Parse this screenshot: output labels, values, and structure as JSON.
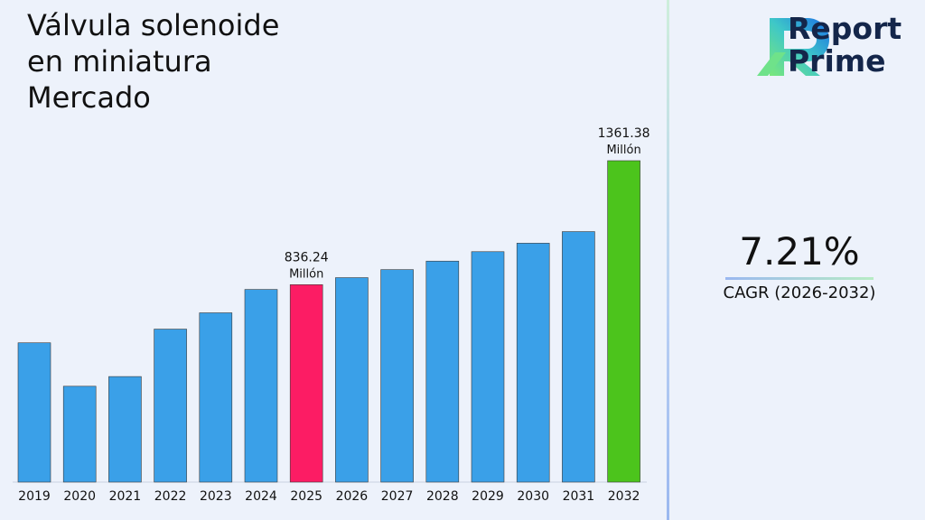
{
  "title_lines": [
    "Válvula solenoide",
    "en miniatura",
    "Mercado"
  ],
  "brand": {
    "line1": "Report",
    "line2": "Prime",
    "logo_icon": "report-prime-r-logo"
  },
  "cagr": {
    "value": "7.21%",
    "label": "CAGR (2026-2032)"
  },
  "colors": {
    "bar": "#3aa0e8",
    "highlight_2025": "#fc1c64",
    "highlight_2032": "#4cc41c"
  },
  "chart_data": {
    "type": "bar",
    "categories": [
      "2019",
      "2020",
      "2021",
      "2022",
      "2023",
      "2024",
      "2025",
      "2026",
      "2027",
      "2028",
      "2029",
      "2030",
      "2031",
      "2032"
    ],
    "values": [
      590,
      406,
      447,
      648,
      717,
      816,
      836.24,
      866,
      900,
      936,
      976,
      1012,
      1061,
      1361.38
    ],
    "highlight": {
      "2025": "highlight_2025",
      "2032": "highlight_2032"
    },
    "data_labels": [
      {
        "category": "2025",
        "value": "836.24",
        "unit": "Millón"
      },
      {
        "category": "2032",
        "value": "1361.38",
        "unit": "Millón"
      }
    ],
    "ylim": [
      0,
      1361.38
    ]
  }
}
